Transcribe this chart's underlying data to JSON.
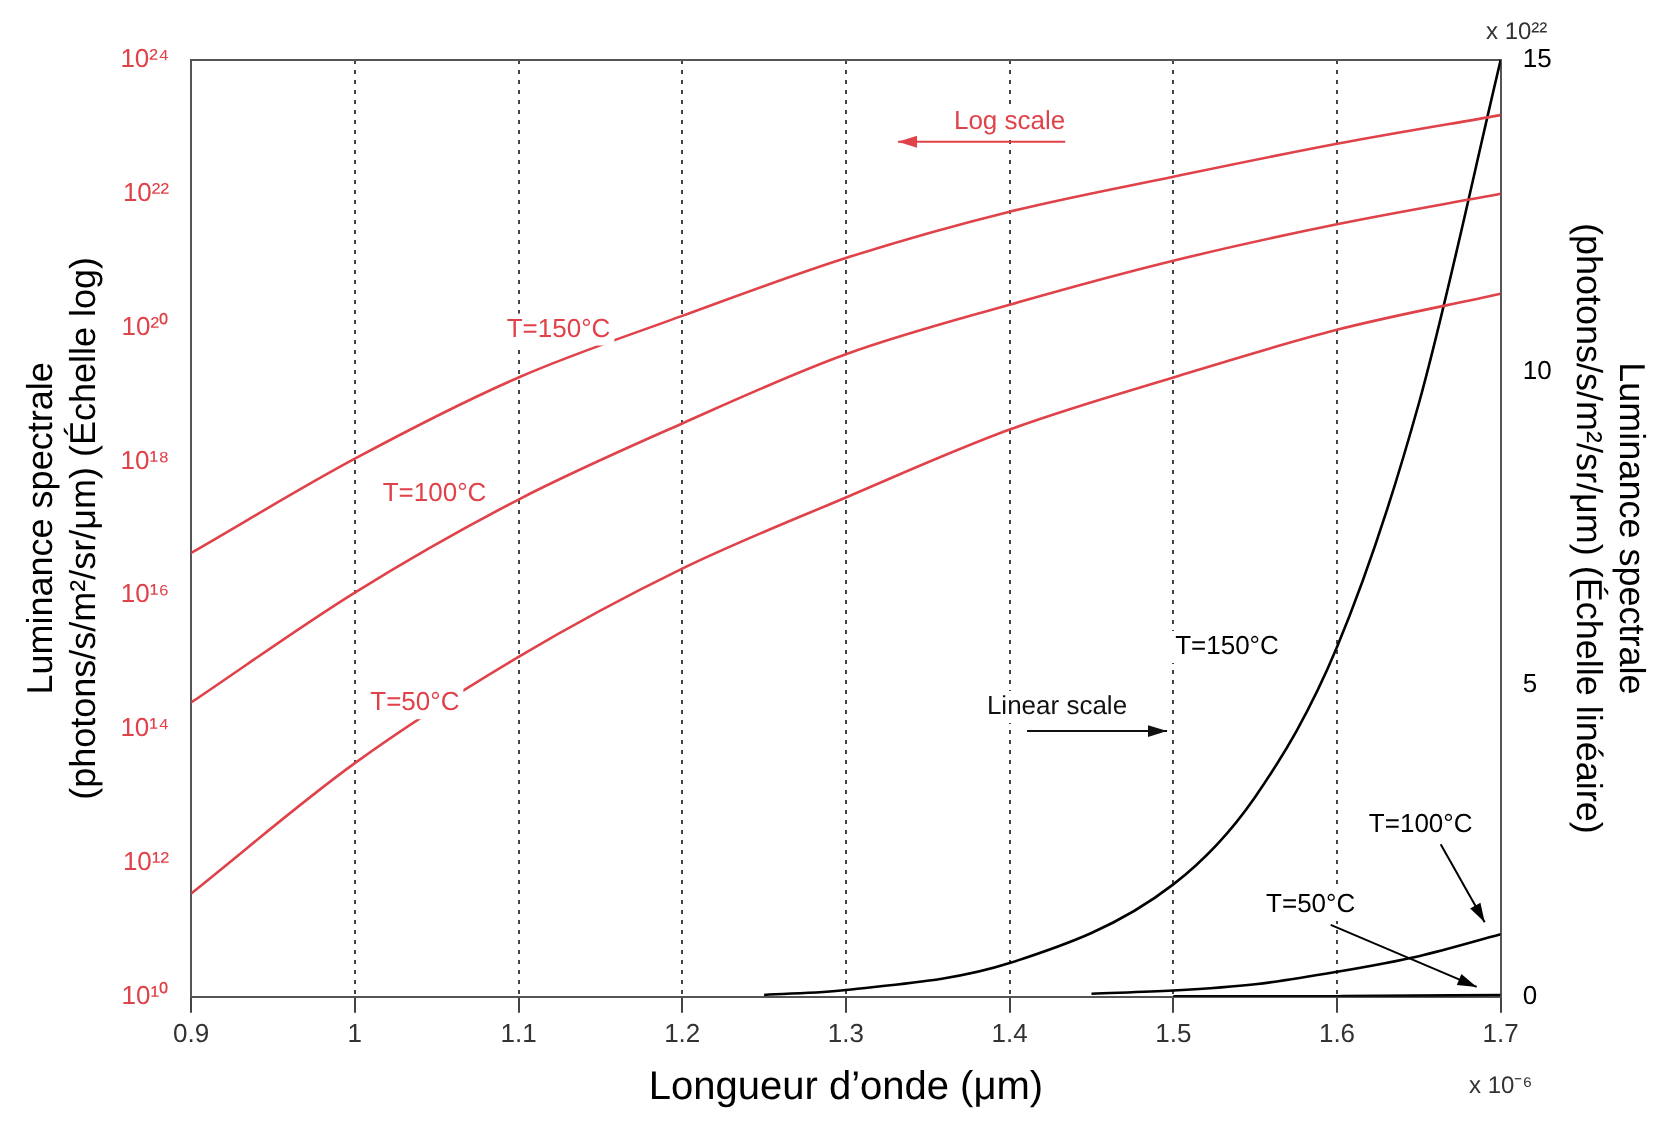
{
  "chart_data": {
    "type": "line",
    "xlabel": "Longueur d’onde (μm)",
    "ylabel": "Luminance spectrale\n(photons/s/m²/sr/μm) (Échelle log)",
    "y2label": "Luminance spectrale\n(photons/s/m²/sr/μm) (Échelle linéaire)",
    "x": [
      0.9,
      1.0,
      1.1,
      1.2,
      1.3,
      1.4,
      1.5,
      1.6,
      1.7
    ],
    "series": [
      {
        "name": "T=150°C",
        "color": "#e0424a",
        "values": [
          4.3e+16,
          1.1e+18,
          1.8e+19,
          1.5e+20,
          1.1e+21,
          5.4e+21,
          1.8e+22,
          5.6e+22,
          1.5e+23
        ]
      },
      {
        "name": "T=100°C",
        "color": "#e0424a",
        "values": [
          250000000000000.0,
          1.1e+16,
          2.7e+17,
          3.7e+18,
          4e+19,
          2.2e+20,
          1e+21,
          3.5e+21,
          1e+22
        ]
      },
      {
        "name": "T=50°C",
        "color": "#e0424a",
        "values": [
          350000000000.0,
          31000000000000.0,
          1200000000000000.0,
          2.5e+16,
          2.9e+17,
          3e+18,
          1.8e+19,
          9.3e+19,
          3.2e+20
        ]
      },
      {
        "name": "T=150°C",
        "color": "#000000",
        "axis": "y2",
        "x": [
          1.25,
          1.3,
          1.4,
          1.5,
          1.55,
          1.6,
          1.65,
          1.7
        ],
        "values": [
          0.03,
          0.11,
          0.54,
          1.8,
          3.2,
          5.6,
          9.5,
          15
        ]
      },
      {
        "name": "T=100°C",
        "color": "#000000",
        "axis": "y2",
        "x": [
          1.45,
          1.5,
          1.55,
          1.6,
          1.65,
          1.7
        ],
        "values": [
          0.05,
          0.1,
          0.2,
          0.4,
          0.65,
          1.0
        ]
      },
      {
        "name": "T=50°C",
        "color": "#000000",
        "axis": "y2",
        "x": [
          1.5,
          1.6,
          1.7
        ],
        "values": [
          0.01,
          0.01,
          0.03
        ]
      }
    ],
    "log": "y",
    "xlim": [
      0.9,
      1.7
    ],
    "xticks": [
      0.9,
      1,
      1.1,
      1.2,
      1.3,
      1.4,
      1.5,
      1.6,
      1.7
    ],
    "ylim": [
      10000000000.0,
      1e+24
    ],
    "yticks": [
      {
        "value": 10000000000.0,
        "label": "10¹⁰"
      },
      {
        "value": 1000000000000.0,
        "label": "10¹²"
      },
      {
        "value": 100000000000000.0,
        "label": "10¹⁴"
      },
      {
        "value": 1e+16,
        "label": "10¹⁶"
      },
      {
        "value": 1e+18,
        "label": "10¹⁸"
      },
      {
        "value": 1e+20,
        "label": "10²⁰"
      },
      {
        "value": 1e+22,
        "label": "10²²"
      },
      {
        "value": 1e+24,
        "label": "10²⁴"
      }
    ],
    "y2lim": [
      0,
      15
    ],
    "y2ticks": [
      0,
      5,
      10,
      15
    ],
    "grid": "x",
    "line_style": "solid",
    "marker": "none",
    "legend": false,
    "annotations": [
      "Log scale",
      "Linear scale",
      "x 10⁻⁶",
      "x 10²²"
    ]
  }
}
